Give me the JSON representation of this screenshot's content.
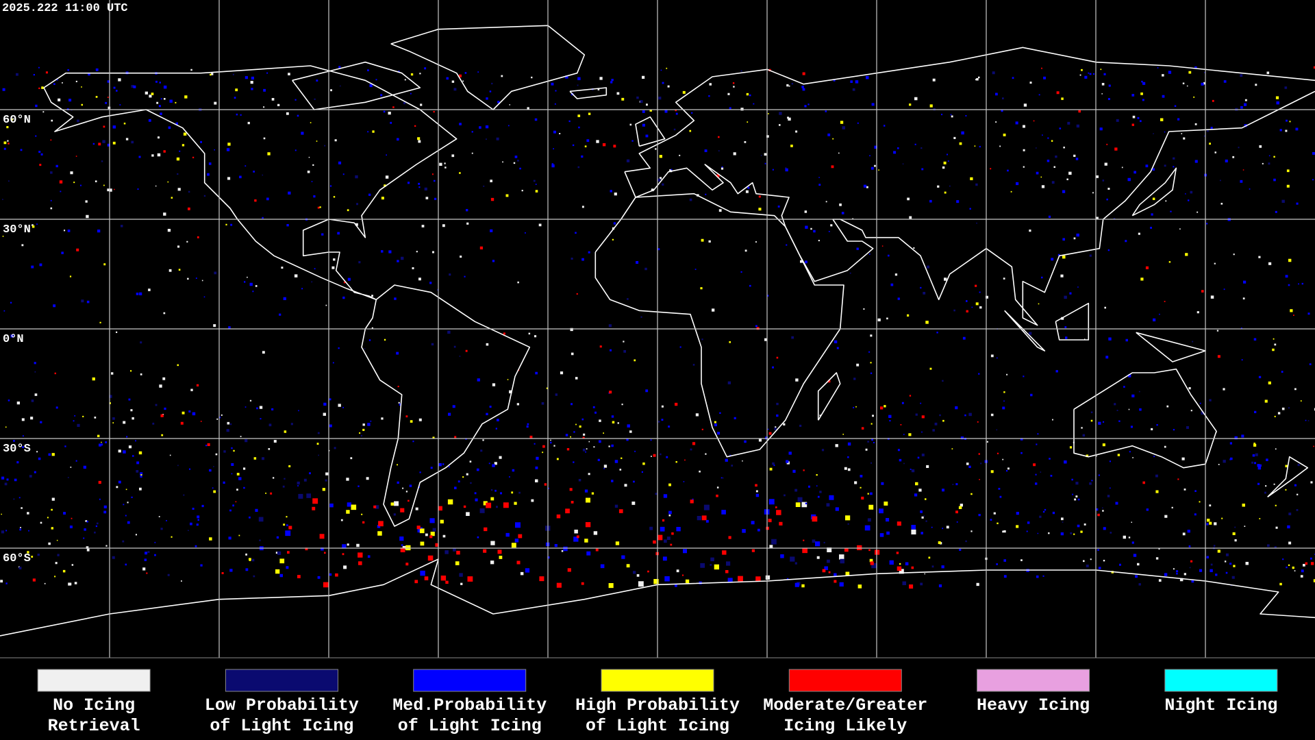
{
  "header": {
    "timestamp": "2025.222 11:00 UTC"
  },
  "map": {
    "latitude_labels": [
      "60°N",
      "30°N",
      "0°N",
      "30°S",
      "60°S"
    ]
  },
  "legend": {
    "items": [
      {
        "label_lines": [
          "No Icing",
          "Retrieval"
        ],
        "color": "#f0f0f0"
      },
      {
        "label_lines": [
          "Low Probability",
          "of Light Icing"
        ],
        "color": "#0a0a70"
      },
      {
        "label_lines": [
          "Med.Probability",
          "of Light Icing"
        ],
        "color": "#0000ff"
      },
      {
        "label_lines": [
          "High Probability",
          "of Light Icing"
        ],
        "color": "#ffff00"
      },
      {
        "label_lines": [
          "Moderate/Greater",
          "Icing Likely"
        ],
        "color": "#ff0000"
      },
      {
        "label_lines": [
          "Heavy Icing"
        ],
        "color": "#e8a0e0"
      },
      {
        "label_lines": [
          "Night Icing"
        ],
        "color": "#00ffff"
      }
    ]
  }
}
